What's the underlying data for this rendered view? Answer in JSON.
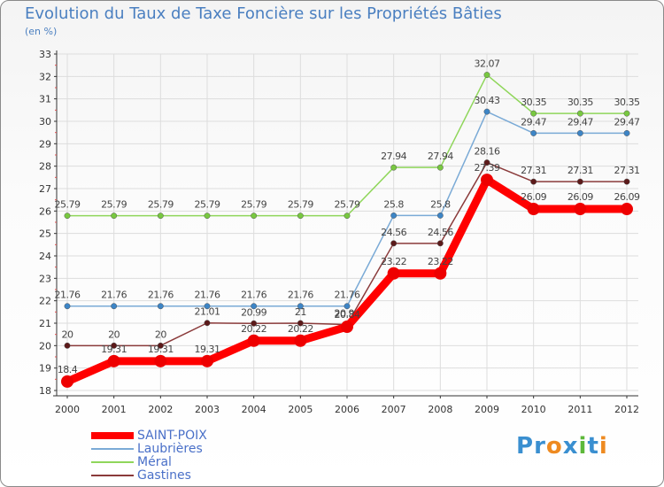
{
  "header": {
    "title": "Evolution du Taux de Taxe Foncière sur les Propriétés Bâties",
    "unit": "(en %)"
  },
  "chart_data": {
    "type": "line",
    "title": "Evolution du Taux de Taxe Foncière sur les Propriétés Bâties",
    "ylabel": "(en %)",
    "xlabel": "",
    "ylim": [
      18,
      33
    ],
    "yticks": [
      "18",
      "19",
      "20",
      "21",
      "22",
      "23",
      "24",
      "25",
      "26",
      "27",
      "28",
      "29",
      "30",
      "31",
      "32",
      "33"
    ],
    "categories": [
      "2000",
      "2001",
      "2002",
      "2003",
      "2004",
      "2005",
      "2006",
      "2007",
      "2008",
      "2009",
      "2010",
      "2011",
      "2012"
    ],
    "grid": true,
    "series": [
      {
        "name": "Méral",
        "color": "#8fd65a",
        "dot": "#78c840",
        "values": [
          25.79,
          25.79,
          25.79,
          25.79,
          25.79,
          25.79,
          25.79,
          27.94,
          27.94,
          32.07,
          30.35,
          30.35,
          30.35
        ],
        "labels": [
          "25.79",
          "25.79",
          "25.79",
          "25.79",
          "25.79",
          "25.79",
          "25.79",
          "27.94",
          "27.94",
          "32.07",
          "30.35",
          "30.35",
          "30.35"
        ]
      },
      {
        "name": "Laubrières",
        "color": "#7aaad6",
        "dot": "#3d85c6",
        "values": [
          21.76,
          21.76,
          21.76,
          21.76,
          21.76,
          21.76,
          21.76,
          25.8,
          25.8,
          30.43,
          29.47,
          29.47,
          29.47
        ],
        "labels": [
          "21.76",
          "21.76",
          "21.76",
          "21.76",
          "21.76",
          "21.76",
          "21.76",
          "25.8",
          "25.8",
          "30.43",
          "29.47",
          "29.47",
          "29.47"
        ]
      },
      {
        "name": "Gastines",
        "color": "#8a3a3a",
        "dot": "#5c1a1a",
        "values": [
          20,
          20,
          20,
          21.01,
          20.99,
          21,
          20.94,
          24.56,
          24.56,
          28.16,
          27.31,
          27.31,
          27.31
        ],
        "labels": [
          "20",
          "20",
          "20",
          "21.01",
          "20.99",
          "21",
          "20.94",
          "24.56",
          "24.56",
          "28.16",
          "27.31",
          "27.31",
          "27.31"
        ]
      },
      {
        "name": "SAINT-POIX",
        "color": "#ff0000",
        "dot": "#ee0000",
        "values": [
          18.4,
          19.31,
          19.31,
          19.31,
          20.22,
          20.22,
          20.84,
          23.22,
          23.22,
          27.39,
          26.09,
          26.09,
          26.09
        ],
        "labels": [
          "18.4",
          "19.31",
          "19.31",
          "19.31",
          "20.22",
          "20.22",
          "20.84",
          "23.22",
          "23.22",
          "27.39",
          "26.09",
          "26.09",
          "26.09"
        ]
      }
    ]
  },
  "legend": {
    "items": [
      {
        "label": "SAINT-POIX",
        "color": "#ff0000"
      },
      {
        "label": "Laubrières",
        "color": "#7aaad6"
      },
      {
        "label": "Méral",
        "color": "#8fd65a"
      },
      {
        "label": "Gastines",
        "color": "#8a3a3a"
      }
    ]
  },
  "brand": {
    "letters": [
      "P",
      "r",
      "o",
      "x",
      "i",
      "t",
      "i"
    ],
    "colors": [
      "#3a8fd0",
      "#3a8fd0",
      "#ee8a20",
      "#3a8fd0",
      "#5db83a",
      "#3a8fd0",
      "#ee8a20"
    ]
  }
}
